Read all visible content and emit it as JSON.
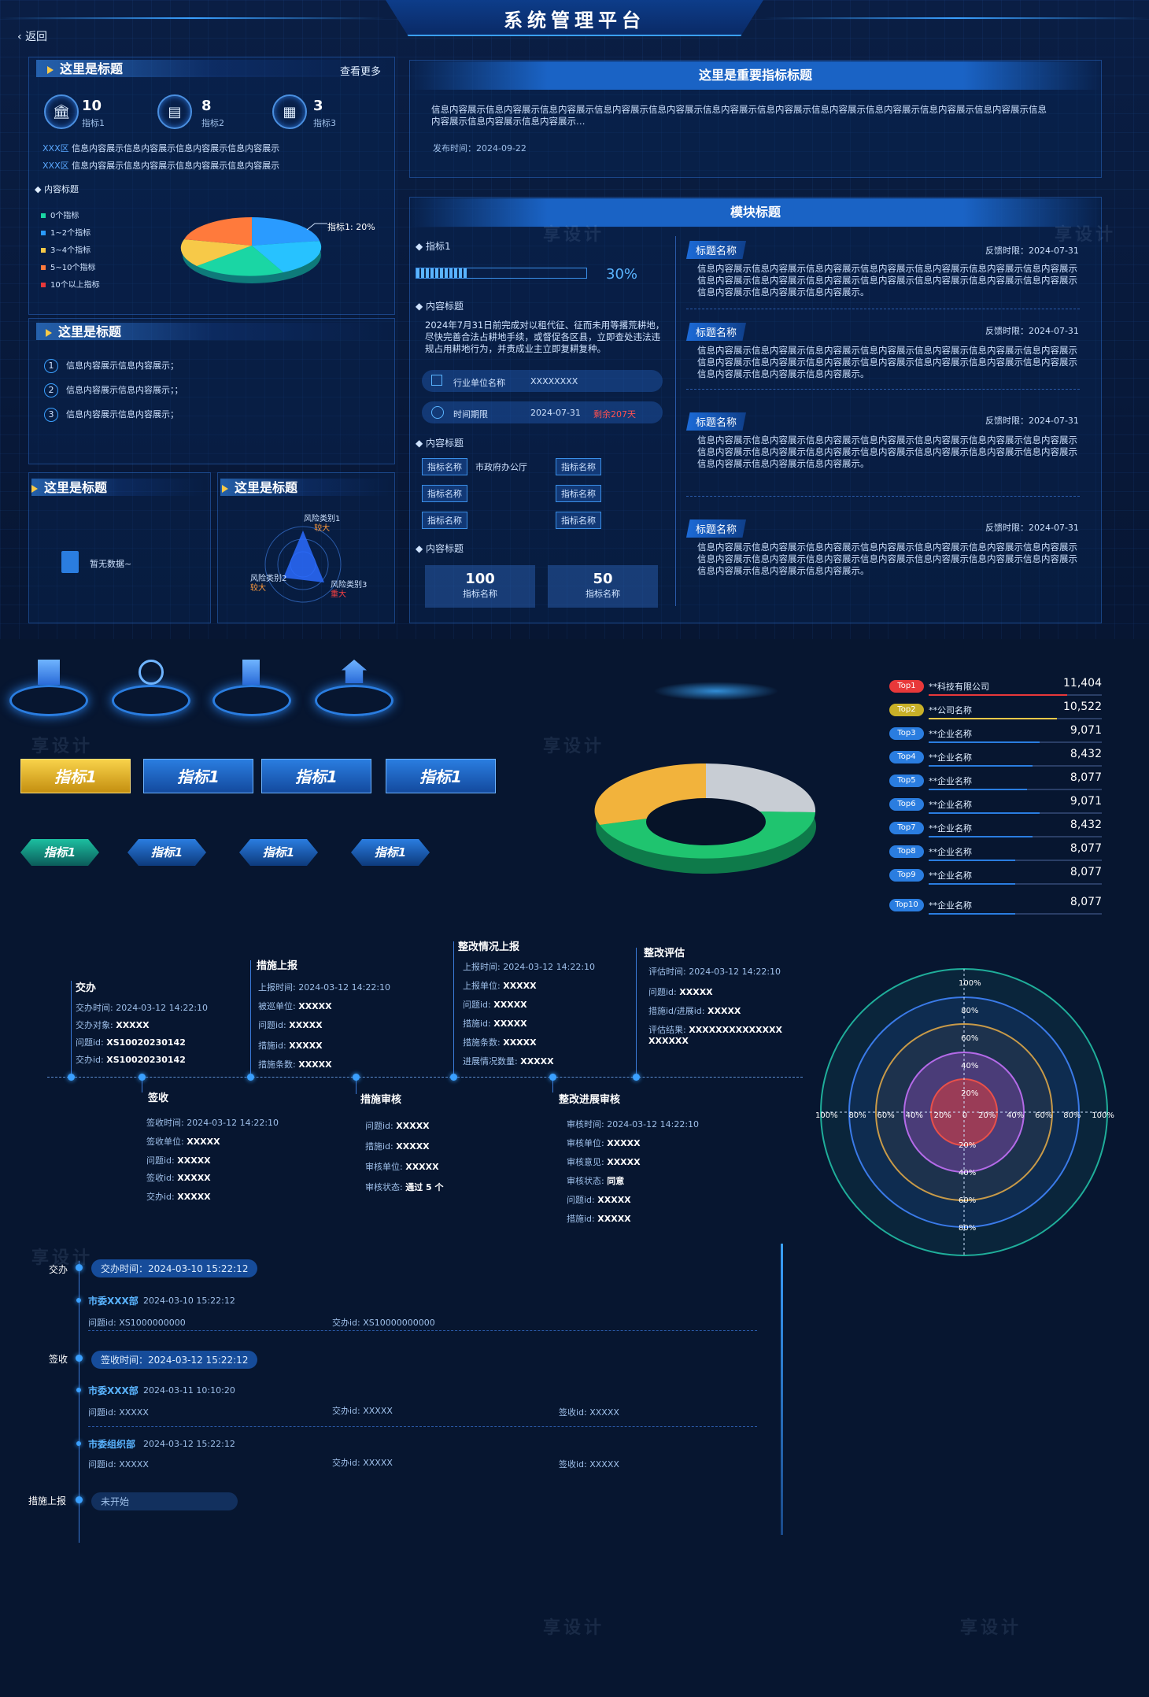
{
  "header": {
    "title": "系统管理平台",
    "back_label": "返回"
  },
  "panel1": {
    "title": "这里是标题",
    "more_label": "查看更多",
    "stats": [
      {
        "value": "10",
        "label": "指标1",
        "icon": "bank-icon"
      },
      {
        "value": "8",
        "label": "指标2",
        "icon": "document-icon"
      },
      {
        "value": "3",
        "label": "指标3",
        "icon": "grid-icon"
      }
    ],
    "rows": [
      {
        "tag": "XXX区",
        "text": "信息内容展示信息内容展示信息内容展示信息内容展示"
      },
      {
        "tag": "XXX区",
        "text": "信息内容展示信息内容展示信息内容展示信息内容展示"
      }
    ],
    "chart_label": "内容标题",
    "legend": [
      "0个指标",
      "1~2个指标",
      "3~4个指标",
      "5~10个指标",
      "10个以上指标"
    ],
    "legend_colors": [
      "#1ad6a4",
      "#2a9bff",
      "#f7c948",
      "#ff7a3c",
      "#e8383a"
    ],
    "pie_callout": "指标1: 20%"
  },
  "panel2": {
    "title": "这里是标题",
    "items": [
      {
        "n": "1",
        "text": "信息内容展示信息内容展示；"
      },
      {
        "n": "2",
        "text": "信息内容展示信息内容展示；；"
      },
      {
        "n": "3",
        "text": "信息内容展示信息内容展示；"
      }
    ]
  },
  "panel3": {
    "title": "这里是标题",
    "empty": "暂无数据~"
  },
  "panel4": {
    "title": "这里是标题",
    "radar_labels": [
      {
        "name": "风险类别1",
        "level": "较大",
        "color": "#ff9a3c"
      },
      {
        "name": "风险类别2",
        "level": "较大",
        "color": "#ff9a3c"
      },
      {
        "name": "风险类别3",
        "level": "重大",
        "color": "#ff4040"
      }
    ]
  },
  "notice": {
    "title": "这里是重要指标标题",
    "text": "信息内容展示信息内容展示信息内容展示信息内容展示信息内容展示信息内容展示信息内容展示信息内容展示信息内容展示信息内容展示信息内容展示信息内容展示信息内容展示信息内容展示…",
    "date": "发布时间：2024-09-22"
  },
  "module": {
    "title": "模块标题",
    "indicator_label": "指标1",
    "progress_text": "30%",
    "progress": 0.3,
    "content_label": "内容标题",
    "content_text": "2024年7月31日前完成对以租代征、征而未用等撂荒耕地，尽快完善合法占耕地手续，或督促各区县，立即查处违法违规占用耕地行为，并责成业主立即复耕复种。",
    "unit_label": "行业单位名称",
    "unit_value": "XXXXXXXX",
    "deadline_label": "时间期限",
    "deadline_value": "2024-07-31",
    "deadline_remain": "剩余207天",
    "content_label2": "内容标题",
    "tags": [
      "指标名称",
      "市政府办公厅",
      "指标名称",
      "指标名称",
      "指标名称",
      "指标名称",
      "指标名称"
    ],
    "content_label3": "内容标题",
    "stats": [
      {
        "value": "100",
        "label": "指标名称"
      },
      {
        "value": "50",
        "label": "指标名称"
      }
    ],
    "feedback": [
      {
        "tag": "标题名称",
        "time": "反馈时限：2024-07-31",
        "text": "信息内容展示信息内容展示信息内容展示信息内容展示信息内容展示信息内容展示信息内容展示信息内容展示信息内容展示信息内容展示信息内容展示信息内容展示信息内容展示信息内容展示信息内容展示信息内容展示信息内容展示。"
      },
      {
        "tag": "标题名称",
        "time": "反馈时限：2024-07-31",
        "text": "信息内容展示信息内容展示信息内容展示信息内容展示信息内容展示信息内容展示信息内容展示信息内容展示信息内容展示信息内容展示信息内容展示信息内容展示信息内容展示信息内容展示信息内容展示信息内容展示信息内容展示。"
      },
      {
        "tag": "标题名称",
        "time": "反馈时限：2024-07-31",
        "text": "信息内容展示信息内容展示信息内容展示信息内容展示信息内容展示信息内容展示信息内容展示信息内容展示信息内容展示信息内容展示信息内容展示信息内容展示信息内容展示信息内容展示信息内容展示信息内容展示信息内容展示。"
      },
      {
        "tag": "标题名称",
        "time": "反馈时限：2024-07-31",
        "text": "信息内容展示信息内容展示信息内容展示信息内容展示信息内容展示信息内容展示信息内容展示信息内容展示信息内容展示信息内容展示信息内容展示信息内容展示信息内容展示信息内容展示信息内容展示信息内容展示信息内容展示。"
      }
    ]
  },
  "buttons": {
    "tiles": [
      "指标1",
      "指标1",
      "指标1",
      "指标1"
    ],
    "hex": [
      "指标1",
      "指标1",
      "指标1",
      "指标1"
    ]
  },
  "ranking": [
    {
      "rank": "Top1",
      "name": "**科技有限公司",
      "value": "11,404",
      "color": "#e8383a",
      "fill": 1.0
    },
    {
      "rank": "Top2",
      "name": "**公司名称",
      "value": "10,522",
      "color": "#f7c948",
      "fill": 0.92
    },
    {
      "rank": "Top3",
      "name": "**企业名称",
      "value": "9,071",
      "color": "#2a7de0",
      "fill": 0.8
    },
    {
      "rank": "Top4",
      "name": "**企业名称",
      "value": "8,432",
      "color": "#2a7de0",
      "fill": 0.74
    },
    {
      "rank": "Top5",
      "name": "**企业名称",
      "value": "8,077",
      "color": "#2a7de0",
      "fill": 0.71
    },
    {
      "rank": "Top6",
      "name": "**企业名称",
      "value": "9,071",
      "color": "#2a7de0",
      "fill": 0.8
    },
    {
      "rank": "Top7",
      "name": "**企业名称",
      "value": "8,432",
      "color": "#2a7de0",
      "fill": 0.74
    },
    {
      "rank": "Top8",
      "name": "**企业名称",
      "value": "8,077",
      "color": "#2a7de0",
      "fill": 0.71
    },
    {
      "rank": "Top9",
      "name": "**企业名称",
      "value": "8,077",
      "color": "#2a7de0",
      "fill": 0.71
    },
    {
      "rank": "Top10",
      "name": "**企业名称",
      "value": "8,077",
      "color": "#2a7de0",
      "fill": 0.71
    }
  ],
  "timeline_h": {
    "up": [
      {
        "title": "交办",
        "lines": [
          [
            "交办时间:",
            "2024-03-12 14:22:10"
          ],
          [
            "交办对象:",
            "XXXXX"
          ],
          [
            "问题id:",
            "XS10020230142"
          ],
          [
            "交办id:",
            "XS10020230142"
          ]
        ]
      },
      {
        "title": "措施上报",
        "lines": [
          [
            "上报时间:",
            "2024-03-12 14:22:10"
          ],
          [
            "被巡单位:",
            "XXXXX"
          ],
          [
            "问题id:",
            "XXXXX"
          ],
          [
            "措施id:",
            "XXXXX"
          ],
          [
            "措施条数:",
            "XXXXX"
          ]
        ]
      },
      {
        "title": "整改情况上报",
        "lines": [
          [
            "上报时间:",
            "2024-03-12 14:22:10"
          ],
          [
            "上报单位:",
            "XXXXX"
          ],
          [
            "问题id:",
            "XXXXX"
          ],
          [
            "措施id:",
            "XXXXX"
          ],
          [
            "措施条数:",
            "XXXXX"
          ],
          [
            "进展情况数量:",
            "XXXXX"
          ]
        ]
      },
      {
        "title": "整改评估",
        "lines": [
          [
            "评估时间:",
            "2024-03-12 14:22:10"
          ],
          [
            "问题id:",
            "XXXXX"
          ],
          [
            "措施id/进展id:",
            "XXXXX"
          ],
          [
            "评估结果:",
            "XXXXXXXXXXXXXX XXXXXX"
          ]
        ]
      }
    ],
    "down": [
      {
        "title": "签收",
        "lines": [
          [
            "签收时间:",
            "2024-03-12 14:22:10"
          ],
          [
            "签收单位:",
            "XXXXX"
          ],
          [
            "问题id:",
            "XXXXX"
          ],
          [
            "签收id:",
            "XXXXX"
          ],
          [
            "交办id:",
            "XXXXX"
          ]
        ]
      },
      {
        "title": "措施审核",
        "lines": [
          [
            "问题id:",
            "XXXXX"
          ],
          [
            "措施id:",
            "XXXXX"
          ],
          [
            "审核单位:",
            "XXXXX"
          ],
          [
            "审核状态:",
            "通过 5 个"
          ]
        ]
      },
      {
        "title": "整改进展审核",
        "lines": [
          [
            "审核时间:",
            "2024-03-12 14:22:10"
          ],
          [
            "审核单位:",
            "XXXXX"
          ],
          [
            "审核意见:",
            "XXXXX"
          ],
          [
            "审核状态:",
            "同意"
          ],
          [
            "问题id:",
            "XXXXX"
          ],
          [
            "措施id:",
            "XXXXX"
          ]
        ]
      }
    ]
  },
  "polar": {
    "ticks": [
      "100%",
      "80%",
      "60%",
      "40%",
      "20%",
      "0",
      "20%",
      "40%",
      "60%",
      "80%",
      "100%"
    ],
    "v_ticks_top": [
      "100%",
      "80%",
      "60%",
      "40%",
      "20%"
    ],
    "v_ticks_bottom": [
      "20%",
      "40%",
      "60%",
      "80%"
    ]
  },
  "timeline_v": [
    {
      "label": "交办",
      "pill": "交办时间：2024-03-10 15:22:12",
      "entries": [
        {
          "org": "市委XXX部",
          "time": "2024-03-10 15:22:12",
          "fields": [
            "问题id: XS1000000000",
            "交办id: XS10000000000"
          ]
        }
      ]
    },
    {
      "label": "签收",
      "pill": "签收时间：2024-03-12 15:22:12",
      "entries": [
        {
          "org": "市委XXX部",
          "time": "2024-03-11 10:10:20",
          "fields": [
            "问题id: XXXXX",
            "交办id: XXXXX",
            "签收id: XXXXX"
          ]
        },
        {
          "org": "市委组织部",
          "time": "2024-03-12 15:22:12",
          "fields": [
            "问题id: XXXXX",
            "交办id: XXXXX",
            "签收id: XXXXX"
          ]
        }
      ]
    },
    {
      "label": "措施上报",
      "pill": "未开始",
      "entries": []
    }
  ],
  "watermark": "享设计"
}
